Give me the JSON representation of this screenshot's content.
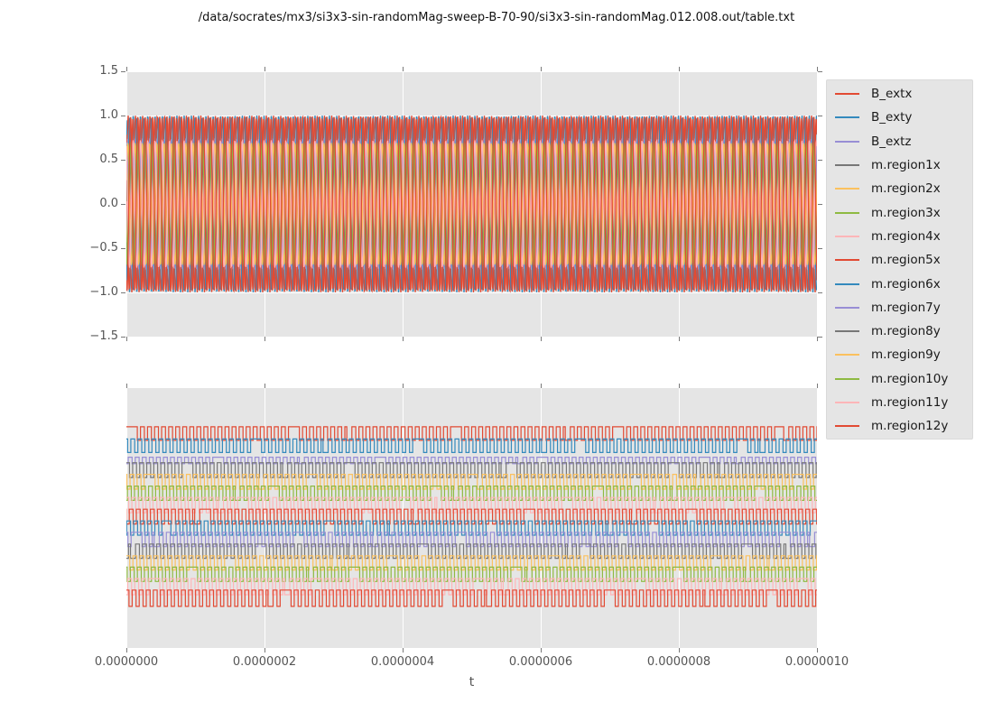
{
  "figure": {
    "title": "/data/socrates/mx3/si3x3-sin-randomMag-sweep-B-70-90/si3x3-sin-randomMag.012.008.out/table.txt",
    "background_color": "#ffffff",
    "panel_background_color": "#e5e5e5",
    "grid_color": "#ffffff",
    "tick_label_color": "#555555",
    "style": "ggplot"
  },
  "legend": {
    "position": "right",
    "background_color": "#e5e5e5",
    "entries": [
      {
        "label": "B_extx",
        "color": "#E24A33"
      },
      {
        "label": "B_exty",
        "color": "#348ABD"
      },
      {
        "label": "B_extz",
        "color": "#988ED5"
      },
      {
        "label": "m.region1x",
        "color": "#777777"
      },
      {
        "label": "m.region2x",
        "color": "#FBC15E"
      },
      {
        "label": "m.region3x",
        "color": "#8EBA42"
      },
      {
        "label": "m.region4x",
        "color": "#FFB5B8"
      },
      {
        "label": "m.region5x",
        "color": "#E24A33"
      },
      {
        "label": "m.region6x",
        "color": "#348ABD"
      },
      {
        "label": "m.region7y",
        "color": "#988ED5"
      },
      {
        "label": "m.region8y",
        "color": "#777777"
      },
      {
        "label": "m.region9y",
        "color": "#FBC15E"
      },
      {
        "label": "m.region10y",
        "color": "#8EBA42"
      },
      {
        "label": "m.region11y",
        "color": "#FFB5B8"
      },
      {
        "label": "m.region12y",
        "color": "#E24A33"
      }
    ]
  },
  "chart_data": [
    {
      "type": "line",
      "panel": "top",
      "waveform": "sine",
      "xlim": [
        0,
        1e-06
      ],
      "ylim": [
        -1.5,
        1.5
      ],
      "yticklabels": [
        "1.5",
        "1.0",
        "0.5",
        "0.0",
        "−0.5",
        "−1.0",
        "−1.5"
      ],
      "grid": true,
      "cycles": 95,
      "series": [
        {
          "name": "B_extx",
          "color": "#E24A33",
          "amplitude": 1.0,
          "phase": 0.0
        },
        {
          "name": "B_exty",
          "color": "#348ABD",
          "amplitude": 1.0,
          "phase": 1.9
        },
        {
          "name": "B_extz",
          "color": "#988ED5",
          "amplitude": 0.74,
          "phase": 0.9
        },
        {
          "name": "m.region1x",
          "color": "#777777",
          "amplitude": 0.72,
          "phase": 2.6
        },
        {
          "name": "m.region2x",
          "color": "#FBC15E",
          "amplitude": 0.7,
          "phase": 4.4
        },
        {
          "name": "m.region3x",
          "color": "#8EBA42",
          "amplitude": 0.69,
          "phase": 5.6
        },
        {
          "name": "m.region4x",
          "color": "#FFB5B8",
          "amplitude": 0.71,
          "phase": 3.1
        },
        {
          "name": "m.region5x",
          "color": "#E24A33",
          "amplitude": 0.97,
          "phase": 2.2
        },
        {
          "name": "m.region6x",
          "color": "#348ABD",
          "amplitude": 0.98,
          "phase": 5.0
        },
        {
          "name": "m.region7y",
          "color": "#988ED5",
          "amplitude": 0.7,
          "phase": 1.3
        },
        {
          "name": "m.region8y",
          "color": "#777777",
          "amplitude": 0.71,
          "phase": 3.8
        },
        {
          "name": "m.region9y",
          "color": "#FBC15E",
          "amplitude": 0.69,
          "phase": 0.4
        },
        {
          "name": "m.region10y",
          "color": "#8EBA42",
          "amplitude": 0.7,
          "phase": 4.9
        },
        {
          "name": "m.region11y",
          "color": "#FFB5B8",
          "amplitude": 0.72,
          "phase": 2.0
        },
        {
          "name": "m.region12y",
          "color": "#E24A33",
          "amplitude": 0.99,
          "phase": 4.2
        }
      ]
    },
    {
      "type": "line",
      "panel": "bottom",
      "waveform": "square",
      "xlim": [
        0,
        1e-06
      ],
      "xlabel": "t",
      "xticklabels": [
        "0.0000000",
        "0.0000002",
        "0.0000004",
        "0.0000006",
        "0.0000008",
        "0.0000010"
      ],
      "y_axis": "unlabeled",
      "grid": true,
      "cycles": 98,
      "duty": 0.55,
      "series": [
        {
          "name": "B_extx",
          "color": "#E24A33",
          "hi": 0.149,
          "lo": 0.201
        },
        {
          "name": "B_exty",
          "color": "#348ABD",
          "hi": 0.196,
          "lo": 0.248
        },
        {
          "name": "B_extz",
          "color": "#988ED5",
          "hi": 0.266,
          "lo": 0.291
        },
        {
          "name": "m.region1x",
          "color": "#777777",
          "hi": 0.287,
          "lo": 0.344
        },
        {
          "name": "m.region2x",
          "color": "#FBC15E",
          "hi": 0.332,
          "lo": 0.389
        },
        {
          "name": "m.region3x",
          "color": "#8EBA42",
          "hi": 0.377,
          "lo": 0.432
        },
        {
          "name": "m.region4x",
          "color": "#FFB5B8",
          "hi": 0.421,
          "lo": 0.48
        },
        {
          "name": "m.region5x",
          "color": "#E24A33",
          "hi": 0.466,
          "lo": 0.523
        },
        {
          "name": "m.region6x",
          "color": "#348ABD",
          "hi": 0.511,
          "lo": 0.566
        },
        {
          "name": "m.region7y",
          "color": "#988ED5",
          "hi": 0.555,
          "lo": 0.61
        },
        {
          "name": "m.region8y",
          "color": "#777777",
          "hi": 0.6,
          "lo": 0.655
        },
        {
          "name": "m.region9y",
          "color": "#FBC15E",
          "hi": 0.645,
          "lo": 0.7
        },
        {
          "name": "m.region10y",
          "color": "#8EBA42",
          "hi": 0.689,
          "lo": 0.744
        },
        {
          "name": "m.region11y",
          "color": "#FFB5B8",
          "hi": 0.733,
          "lo": 0.795
        },
        {
          "name": "m.region12y",
          "color": "#E24A33",
          "hi": 0.777,
          "lo": 0.84
        }
      ]
    }
  ]
}
